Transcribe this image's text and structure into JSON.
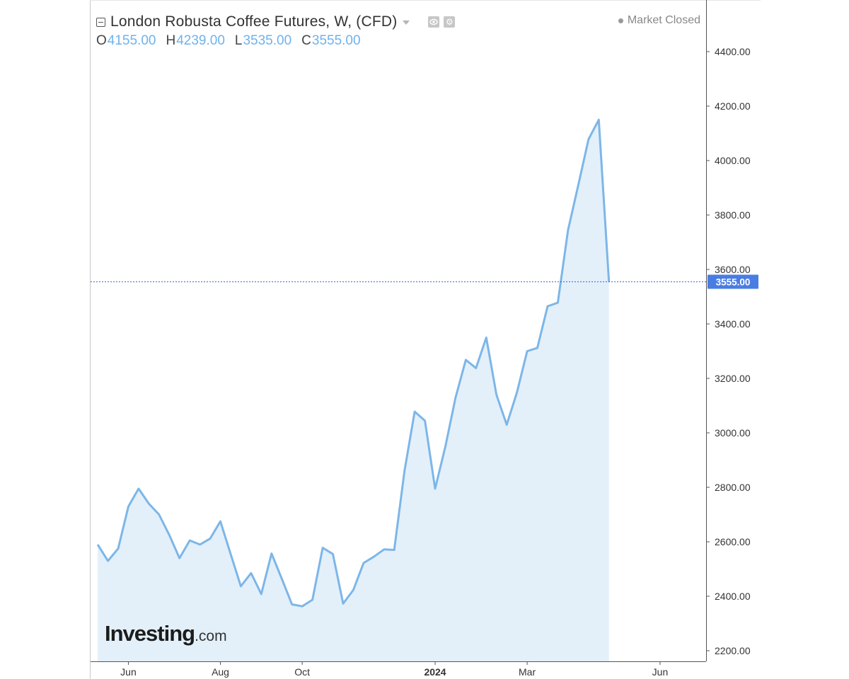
{
  "header": {
    "title": "London Robusta Coffee Futures, W, (CFD)",
    "status": "Market Closed",
    "ohlc": [
      {
        "key": "O",
        "value": "4155.00"
      },
      {
        "key": "H",
        "value": "4239.00"
      },
      {
        "key": "L",
        "value": "3535.00"
      },
      {
        "key": "C",
        "value": "3555.00"
      }
    ]
  },
  "icons": {
    "collapse": "collapse-square-icon",
    "menu": "caret-down-icon",
    "visibility": "eye-icon",
    "settings": "gear-icon",
    "status": "status-dot-icon"
  },
  "logo": {
    "main": "Investing",
    "suffix": ".com"
  },
  "colors": {
    "line": "#7db6e8",
    "fill": "#e3f0fa",
    "price_label_bg": "#4a7de2",
    "price_line": "#3060c8",
    "axis": "#555555",
    "text": "#333333"
  },
  "chart_data": {
    "type": "area",
    "title": "London Robusta Coffee Futures, W, (CFD)",
    "xlabel": "",
    "ylabel": "",
    "ylim": [
      2200,
      4500
    ],
    "grid": false,
    "legend": "top-left",
    "y_axis_side": "right",
    "y_ticks": [
      "2200.00",
      "2400.00",
      "2600.00",
      "2800.00",
      "3000.00",
      "3200.00",
      "3400.00",
      "3600.00",
      "3800.00",
      "4000.00",
      "4200.00",
      "4400.00"
    ],
    "x_ticks": [
      {
        "label": "Jun",
        "week_index": 3,
        "bold": false
      },
      {
        "label": "Aug",
        "week_index": 12,
        "bold": false
      },
      {
        "label": "Oct",
        "week_index": 20,
        "bold": false
      },
      {
        "label": "2024",
        "week_index": 33,
        "bold": true
      },
      {
        "label": "Mar",
        "week_index": 42,
        "bold": false
      },
      {
        "label": "Jun",
        "week_index": 55,
        "bold": false
      }
    ],
    "x_range": [
      -0.7,
      59.5
    ],
    "last_price": "3555.00",
    "last_value": 3555,
    "values": [
      2590,
      2530,
      2575,
      2730,
      2795,
      2740,
      2700,
      2625,
      2540,
      2605,
      2590,
      2612,
      2675,
      2555,
      2437,
      2485,
      2408,
      2557,
      2465,
      2370,
      2363,
      2387,
      2578,
      2555,
      2373,
      2423,
      2522,
      2545,
      2572,
      2570,
      2860,
      3078,
      3045,
      2795,
      2950,
      3130,
      3268,
      3238,
      3350,
      3140,
      3030,
      3148,
      3300,
      3312,
      3465,
      3478,
      3745,
      3910,
      4078,
      4150,
      3555
    ]
  }
}
